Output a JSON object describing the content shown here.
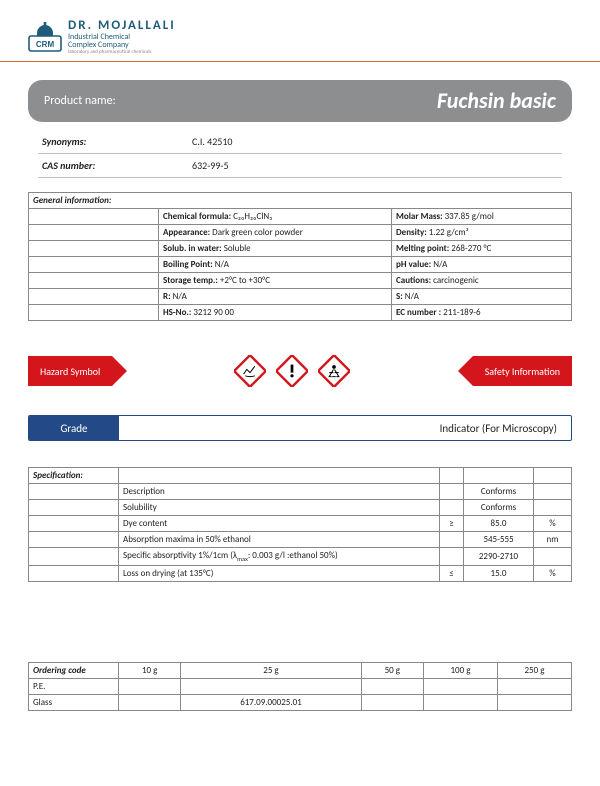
{
  "brand": {
    "name": "DR. MOJALLALI",
    "sub1": "Industrial Chemical",
    "sub2": "Complex Company",
    "sub3": "laboratory and pharmaceutical chemicals"
  },
  "product": {
    "label": "Product name:",
    "value": "Fuchsin  basic"
  },
  "synonyms": {
    "label": "Synonyms:",
    "value": "C.I. 42510"
  },
  "cas": {
    "label": "CAS number:",
    "value": "632-99-5"
  },
  "general": {
    "heading": "General information:",
    "rows": [
      {
        "l1": "Chemical formula:",
        "v1": "C₂₀H₂₀ClN₃",
        "l2": "Molar Mass:",
        "v2": "337.85 g/mol"
      },
      {
        "l1": "Appearance:",
        "v1": "Dark green color powder",
        "l2": "Density:",
        "v2": "1.22 g/cm³"
      },
      {
        "l1": "Solub. in water:",
        "v1": "Soluble",
        "l2": "Melting point:",
        "v2": "268-270 °C"
      },
      {
        "l1": "Boiling Point:",
        "v1": "N/A",
        "l2": "pH value:",
        "v2": "N/A"
      },
      {
        "l1": "Storage temp.:",
        "v1": " +2°C to +30°C",
        "l2": "Cautions:",
        "v2": " carcinogenic"
      },
      {
        "l1": "R:",
        "v1": "N/A",
        "l2": "S:",
        "v2": " N/A"
      },
      {
        "l1": "HS-No.:",
        "v1": " 3212 90 00",
        "l2": "EC number :",
        "v2": " 211-189-6"
      }
    ]
  },
  "hazard": {
    "left": "Hazard Symbol",
    "right": "Safety Information"
  },
  "grade": {
    "label": "Grade",
    "value": "Indicator (For Microscopy)"
  },
  "spec": {
    "heading": "Specification:",
    "rows": [
      {
        "desc": "Description",
        "op": "",
        "val": "Conforms",
        "unit": ""
      },
      {
        "desc": "Solubility",
        "op": "",
        "val": "Conforms",
        "unit": ""
      },
      {
        "desc": "Dye content",
        "op": "≥",
        "val": "85.0",
        "unit": "%"
      },
      {
        "desc": "Absorption maxima in 50% ethanol",
        "op": "",
        "val": "545-555",
        "unit": "nm"
      },
      {
        "desc": "Specific absorptivity 1%/1cm (λmax: 0.003 g/l :ethanol 50%)",
        "op": "",
        "val": "2290-2710",
        "unit": ""
      },
      {
        "desc": "Loss on drying (at 135°C)",
        "op": "≤",
        "val": "15.0",
        "unit": "%"
      }
    ]
  },
  "order": {
    "heading": "Ordering code",
    "sizes": [
      "10 g",
      "25 g",
      "50 g",
      "100 g",
      "250 g"
    ],
    "packs": [
      {
        "name": "P.E.",
        "codes": [
          "",
          "",
          "",
          "",
          ""
        ]
      },
      {
        "name": "Glass",
        "codes": [
          "",
          "617.09.00025.01",
          "",
          "",
          ""
        ]
      }
    ]
  },
  "colors": {
    "accent": "#d26a2a",
    "red": "#d4151b",
    "blue": "#234a87",
    "teal": "#1f5b7a",
    "grey": "#8d8e90"
  }
}
